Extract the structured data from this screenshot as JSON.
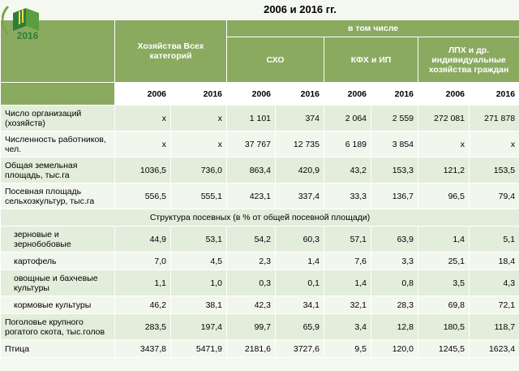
{
  "title": "2006  и 2016 гг.",
  "logo": {
    "year": "2016"
  },
  "header": {
    "col_all": "Хозяйства Всех категорий",
    "col_incl": "в том числе",
    "col_sxo": "СХО",
    "col_kfh": "КФХ и ИП",
    "col_lph": "ЛПХ и др. индивидуальные хозяйства граждан"
  },
  "years": [
    "2006",
    "2016",
    "2006",
    "2016",
    "2006",
    "2016",
    "2006",
    "2016"
  ],
  "rows": [
    {
      "label": "Число организаций (хозяйств)",
      "values": [
        "x",
        "x",
        "1 101",
        "374",
        "2 064",
        "2 559",
        "272 081",
        "271 878"
      ]
    },
    {
      "label": "Численность работников, чел.",
      "values": [
        "x",
        "x",
        "37 767",
        "12 735",
        "6 189",
        "3 854",
        "x",
        "x"
      ]
    },
    {
      "label": "Общая земельная площадь, тыс.га",
      "values": [
        "1036,5",
        "736,0",
        "863,4",
        "420,9",
        "43,2",
        "153,3",
        "121,2",
        "153,5"
      ]
    },
    {
      "label": "Посевная площадь сельхозкультур, тыс.га",
      "values": [
        "556,5",
        "555,1",
        "423,1",
        "337,4",
        "33,3",
        "136,7",
        "96,5",
        "79,4"
      ]
    }
  ],
  "section_title": "Структура посевных (в % от общей посевной площади)",
  "crop_rows": [
    {
      "label": "зерновые и зернобобовые",
      "values": [
        "44,9",
        "53,1",
        "54,2",
        "60,3",
        "57,1",
        "63,9",
        "1,4",
        "5,1"
      ]
    },
    {
      "label": "картофель",
      "values": [
        "7,0",
        "4,5",
        "2,3",
        "1,4",
        "7,6",
        "3,3",
        "25,1",
        "18,4"
      ]
    },
    {
      "label": "овощные и бахчевые культуры",
      "values": [
        "1,1",
        "1,0",
        "0,3",
        "0,1",
        "1,4",
        "0,8",
        "3,5",
        "4,3"
      ]
    },
    {
      "label": "кормовые культуры",
      "values": [
        "46,2",
        "38,1",
        "42,3",
        "34,1",
        "32,1",
        "28,3",
        "69,8",
        "72,1"
      ]
    }
  ],
  "bottom_rows": [
    {
      "label": "Поголовье крупного рогатого скота, тыс.голов",
      "values": [
        "283,5",
        "197,4",
        "99,7",
        "65,9",
        "3,4",
        "12,8",
        "180,5",
        "118,7"
      ]
    },
    {
      "label": "Птица",
      "values": [
        "3437,8",
        "5471,9",
        "2181,6",
        "3727,6",
        "9,5",
        "120,0",
        "1245,5",
        "1623,4"
      ]
    }
  ]
}
